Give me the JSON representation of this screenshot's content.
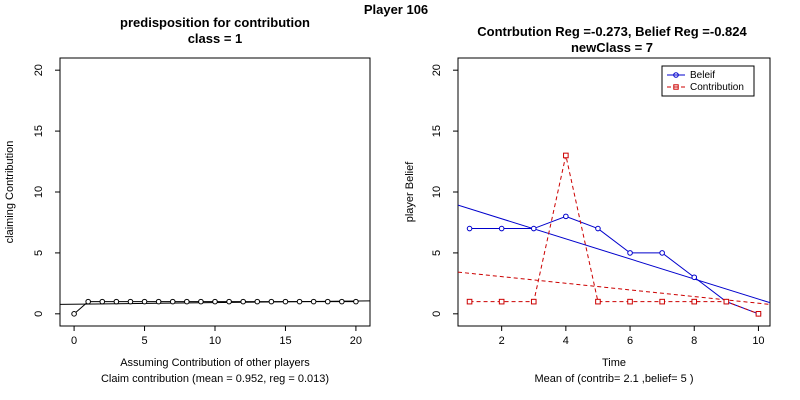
{
  "figure_title": "Player 106",
  "chart_data": [
    {
      "type": "scatter",
      "title_line1": "predisposition for contribution",
      "title_line2": "class = 1",
      "xlabel": "Assuming Contribution of other players",
      "subcaption": "Claim contribution (mean = 0.952, reg = 0.013)",
      "ylabel": "claiming Contribution",
      "xlim": [
        -1,
        21
      ],
      "ylim": [
        -1,
        21
      ],
      "xticks": [
        0,
        5,
        10,
        15,
        20
      ],
      "yticks": [
        0,
        5,
        10,
        15,
        20
      ],
      "points_color": "#000000",
      "x": [
        0,
        1,
        2,
        3,
        4,
        5,
        6,
        7,
        8,
        9,
        10,
        11,
        12,
        13,
        14,
        15,
        16,
        17,
        18,
        19,
        20
      ],
      "y": [
        0,
        1,
        1,
        1,
        1,
        1,
        1,
        1,
        1,
        1,
        1,
        1,
        1,
        1,
        1,
        1,
        1,
        1,
        1,
        1,
        1
      ],
      "regression_line": {
        "intercept": 0.79,
        "slope": 0.013,
        "color": "#000000"
      }
    },
    {
      "type": "line",
      "title_line1": "Contrbution Reg =-0.273, Belief Reg =-0.824",
      "title_line2": "newClass = 7",
      "xlabel": "Time",
      "subcaption": "Mean of (contrib= 2.1  ,belief= 5 )",
      "ylabel": "player Belief",
      "xlim": [
        0.64,
        10.36
      ],
      "ylim": [
        -1,
        21
      ],
      "xticks": [
        2,
        4,
        6,
        8,
        10
      ],
      "yticks": [
        0,
        5,
        10,
        15,
        20
      ],
      "legend_position": "top-right",
      "x": [
        1,
        2,
        3,
        4,
        5,
        6,
        7,
        8,
        9,
        10
      ],
      "series": [
        {
          "name": "Beleif",
          "color": "#0000CC",
          "marker": "circle",
          "dash": "solid",
          "values": [
            7,
            7,
            7,
            8,
            7,
            5,
            5,
            3,
            1,
            0
          ],
          "regression": {
            "intercept": 9.45,
            "slope": -0.824
          }
        },
        {
          "name": "Contribution",
          "color": "#CC0000",
          "marker": "square",
          "dash": "dashed",
          "values": [
            1,
            1,
            1,
            13,
            1,
            1,
            1,
            1,
            1,
            0
          ],
          "regression": {
            "intercept": 3.6,
            "slope": -0.273
          }
        }
      ]
    }
  ]
}
